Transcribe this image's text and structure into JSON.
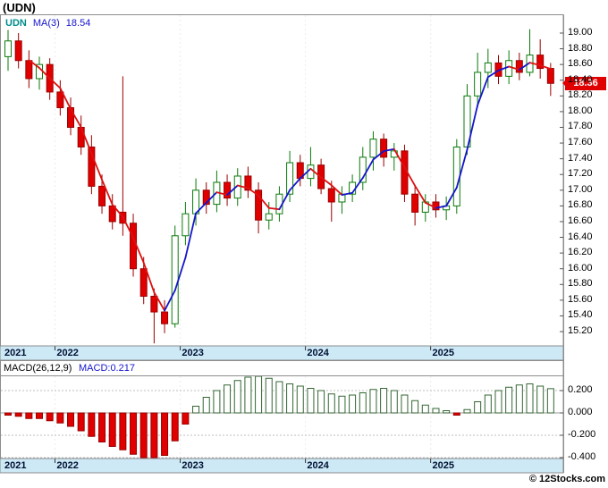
{
  "title": "(UDN)",
  "legend": {
    "symbol": "UDN",
    "ma_label": "MA(3)",
    "ma_value": "18.54"
  },
  "last_price": "18.36",
  "macd_header": {
    "params": "MACD(26,12,9)",
    "value": "MACD:0.217"
  },
  "footer": "© 12Stocks.com",
  "colors": {
    "up": "#0b7a0b",
    "up_fill": "#ffffff",
    "down": "#990000",
    "down_fill": "#e00000",
    "ma_up": "#1515cc",
    "ma_down": "#dd1111",
    "macd_pos_stroke": "#336633",
    "macd_pos_fill": "#ffffff",
    "macd_neg_stroke": "#990000",
    "macd_neg_fill": "#e00000",
    "band": "#cde9f6",
    "badge": "#e00000",
    "legend_symbol": "#008b8b",
    "legend_ma": "#1515cc",
    "grid": "#bdbdbd",
    "border": "#8c8c8c",
    "year_label": "#001133"
  },
  "chart_data": [
    {
      "type": "candlestick",
      "title": "UDN monthly candlesticks with MA(3)",
      "ylabel": "Price",
      "ylim": [
        15.02,
        19.24
      ],
      "grid": false,
      "y_ticks": [
        "19.00",
        "18.80",
        "18.60",
        "18.40",
        "18.20",
        "18.00",
        "17.80",
        "17.60",
        "17.40",
        "17.20",
        "17.00",
        "16.80",
        "16.60",
        "16.40",
        "16.20",
        "16.00",
        "15.80",
        "15.60",
        "15.40",
        "15.20"
      ],
      "x_year_labels": [
        {
          "label": "2021",
          "i": 0
        },
        {
          "label": "2022",
          "i": 5
        },
        {
          "label": "2023",
          "i": 17
        },
        {
          "label": "2024",
          "i": 29
        },
        {
          "label": "2025",
          "i": 41
        }
      ],
      "ma_window": 3,
      "ma_last": 18.54,
      "last_close": 18.36,
      "candles_ohlc": [
        [
          18.7,
          19.04,
          18.52,
          18.9
        ],
        [
          18.9,
          19.0,
          18.55,
          18.65
        ],
        [
          18.65,
          18.78,
          18.3,
          18.42
        ],
        [
          18.42,
          18.7,
          18.28,
          18.6
        ],
        [
          18.6,
          18.68,
          18.15,
          18.25
        ],
        [
          18.25,
          18.4,
          17.95,
          18.05
        ],
        [
          18.05,
          18.18,
          17.7,
          17.8
        ],
        [
          17.8,
          17.95,
          17.45,
          17.55
        ],
        [
          17.55,
          17.7,
          16.95,
          17.05
        ],
        [
          17.05,
          17.2,
          16.7,
          16.8
        ],
        [
          16.8,
          16.95,
          16.5,
          16.6
        ],
        [
          16.72,
          18.45,
          16.42,
          16.58
        ],
        [
          16.58,
          16.7,
          15.9,
          16.0
        ],
        [
          16.0,
          16.15,
          15.55,
          15.65
        ],
        [
          15.65,
          15.75,
          15.05,
          15.45
        ],
        [
          15.45,
          15.6,
          15.18,
          15.3
        ],
        [
          15.3,
          16.55,
          15.25,
          16.42
        ],
        [
          16.42,
          16.85,
          16.3,
          16.7
        ],
        [
          16.7,
          17.15,
          16.55,
          17.0
        ],
        [
          17.0,
          17.1,
          16.7,
          16.82
        ],
        [
          16.82,
          17.25,
          16.72,
          17.1
        ],
        [
          17.1,
          17.2,
          16.8,
          16.9
        ],
        [
          16.9,
          17.28,
          16.8,
          17.18
        ],
        [
          17.18,
          17.3,
          16.9,
          17.0
        ],
        [
          17.0,
          17.1,
          16.45,
          16.62
        ],
        [
          16.62,
          16.85,
          16.5,
          16.7
        ],
        [
          16.7,
          17.05,
          16.6,
          16.95
        ],
        [
          16.95,
          17.5,
          16.85,
          17.35
        ],
        [
          17.35,
          17.45,
          17.05,
          17.15
        ],
        [
          17.15,
          17.55,
          17.05,
          17.32
        ],
        [
          17.32,
          17.4,
          16.95,
          17.02
        ],
        [
          17.02,
          17.12,
          16.6,
          16.85
        ],
        [
          16.85,
          17.05,
          16.7,
          16.95
        ],
        [
          16.95,
          17.2,
          16.85,
          17.1
        ],
        [
          17.1,
          17.55,
          17.0,
          17.42
        ],
        [
          17.42,
          17.75,
          17.25,
          17.65
        ],
        [
          17.65,
          17.72,
          17.3,
          17.42
        ],
        [
          17.42,
          17.6,
          17.25,
          17.5
        ],
        [
          17.5,
          17.58,
          16.85,
          16.95
        ],
        [
          16.95,
          17.05,
          16.55,
          16.72
        ],
        [
          16.72,
          16.95,
          16.6,
          16.85
        ],
        [
          16.85,
          16.95,
          16.65,
          16.75
        ],
        [
          16.75,
          16.92,
          16.62,
          16.8
        ],
        [
          16.8,
          17.65,
          16.7,
          17.55
        ],
        [
          17.55,
          18.35,
          17.45,
          18.2
        ],
        [
          18.2,
          18.75,
          18.05,
          18.5
        ],
        [
          18.5,
          18.8,
          18.3,
          18.62
        ],
        [
          18.62,
          18.72,
          18.35,
          18.45
        ],
        [
          18.45,
          18.78,
          18.35,
          18.65
        ],
        [
          18.65,
          18.75,
          18.4,
          18.5
        ],
        [
          18.5,
          19.05,
          18.45,
          18.72
        ],
        [
          18.72,
          18.92,
          18.42,
          18.55
        ],
        [
          18.55,
          18.62,
          18.2,
          18.36
        ]
      ]
    },
    {
      "type": "bar",
      "title": "MACD(26,12,9) histogram",
      "ylim": [
        -0.408,
        0.336
      ],
      "y_ticks": [
        "0.200",
        "0.000",
        "-0.200",
        "-0.400"
      ],
      "last_value": 0.217,
      "x_year_labels": [
        {
          "label": "2021",
          "i": 0
        },
        {
          "label": "2022",
          "i": 5
        },
        {
          "label": "2023",
          "i": 17
        },
        {
          "label": "2024",
          "i": 29
        },
        {
          "label": "2025",
          "i": 41
        }
      ],
      "values": [
        -0.02,
        -0.03,
        -0.05,
        -0.05,
        -0.07,
        -0.09,
        -0.12,
        -0.16,
        -0.21,
        -0.26,
        -0.3,
        -0.33,
        -0.37,
        -0.4,
        -0.42,
        -0.38,
        -0.25,
        -0.1,
        0.06,
        0.14,
        0.2,
        0.25,
        0.29,
        0.32,
        0.33,
        0.31,
        0.28,
        0.26,
        0.24,
        0.22,
        0.2,
        0.17,
        0.15,
        0.16,
        0.18,
        0.21,
        0.22,
        0.2,
        0.16,
        0.11,
        0.07,
        0.04,
        0.02,
        -0.02,
        0.03,
        0.1,
        0.16,
        0.2,
        0.23,
        0.25,
        0.26,
        0.24,
        0.217
      ]
    }
  ]
}
